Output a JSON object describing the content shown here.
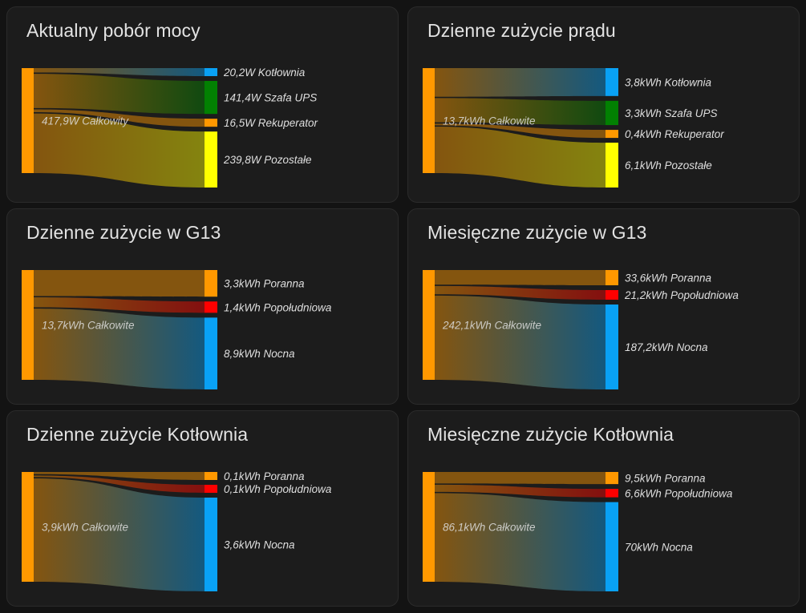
{
  "theme": {
    "page_bg": "#131313",
    "card_bg": "#1c1c1c",
    "card_border": "#2b2b2b",
    "title_color": "#e3e3e3",
    "label_color": "#dfdfdf",
    "source_color": "#ff9800",
    "flow_opacity": 0.46
  },
  "chart_data": [
    {
      "type": "sankey",
      "title": "Aktualny pobór mocy",
      "unit": "W",
      "source": {
        "label": "417,9W Całkowity",
        "value": 417.9,
        "color": "#ff9800"
      },
      "targets": [
        {
          "label": "20,2W Kotłownia",
          "value": 20.2,
          "color": "#09a1f5"
        },
        {
          "label": "141,4W Szafa UPS",
          "value": 141.4,
          "color": "#028002"
        },
        {
          "label": "16,5W Rekuperator",
          "value": 16.5,
          "color": "#ff9800"
        },
        {
          "label": "239,8W Pozostałe",
          "value": 239.8,
          "color": "#ffff00"
        }
      ]
    },
    {
      "type": "sankey",
      "title": "Dzienne zużycie prądu",
      "unit": "kWh",
      "source": {
        "label": "13,7kWh Całkowite",
        "value": 13.7,
        "color": "#ff9800"
      },
      "targets": [
        {
          "label": "3,8kWh Kotłownia",
          "value": 3.8,
          "color": "#09a1f5"
        },
        {
          "label": "3,3kWh Szafa UPS",
          "value": 3.3,
          "color": "#028002"
        },
        {
          "label": "0,4kWh Rekuperator",
          "value": 0.4,
          "color": "#ff9800"
        },
        {
          "label": "6,1kWh Pozostałe",
          "value": 6.1,
          "color": "#ffff00"
        }
      ]
    },
    {
      "type": "sankey",
      "title": "Dzienne zużycie w G13",
      "unit": "kWh",
      "source": {
        "label": "13,7kWh Całkowite",
        "value": 13.7,
        "color": "#ff9800"
      },
      "targets": [
        {
          "label": "3,3kWh Poranna",
          "value": 3.3,
          "color": "#ff9800"
        },
        {
          "label": "1,4kWh Popołudniowa",
          "value": 1.4,
          "color": "#fe0000"
        },
        {
          "label": "8,9kWh Nocna",
          "value": 8.9,
          "color": "#09a1f5"
        }
      ]
    },
    {
      "type": "sankey",
      "title": "Miesięczne zużycie w G13",
      "unit": "kWh",
      "source": {
        "label": "242,1kWh Całkowite",
        "value": 242.1,
        "color": "#ff9800"
      },
      "targets": [
        {
          "label": "33,6kWh Poranna",
          "value": 33.6,
          "color": "#ff9800"
        },
        {
          "label": "21,2kWh Popołudniowa",
          "value": 21.2,
          "color": "#fe0000"
        },
        {
          "label": "187,2kWh Nocna",
          "value": 187.2,
          "color": "#09a1f5"
        }
      ]
    },
    {
      "type": "sankey",
      "title": "Dzienne zużycie Kotłownia",
      "unit": "kWh",
      "source": {
        "label": "3,9kWh Całkowite",
        "value": 3.9,
        "color": "#ff9800"
      },
      "targets": [
        {
          "label": "0,1kWh Poranna",
          "value": 0.1,
          "color": "#ff9800"
        },
        {
          "label": "0,1kWh Popołudniowa",
          "value": 0.1,
          "color": "#fe0000"
        },
        {
          "label": "3,6kWh Nocna",
          "value": 3.6,
          "color": "#09a1f5"
        }
      ]
    },
    {
      "type": "sankey",
      "title": "Miesięczne zużycie Kotłownia",
      "unit": "kWh",
      "source": {
        "label": "86,1kWh Całkowite",
        "value": 86.1,
        "color": "#ff9800"
      },
      "targets": [
        {
          "label": "9,5kWh Poranna",
          "value": 9.5,
          "color": "#ff9800"
        },
        {
          "label": "6,6kWh Popołudniowa",
          "value": 6.6,
          "color": "#fe0000"
        },
        {
          "label": "70kWh Nocna",
          "value": 70,
          "color": "#09a1f5"
        }
      ]
    }
  ]
}
